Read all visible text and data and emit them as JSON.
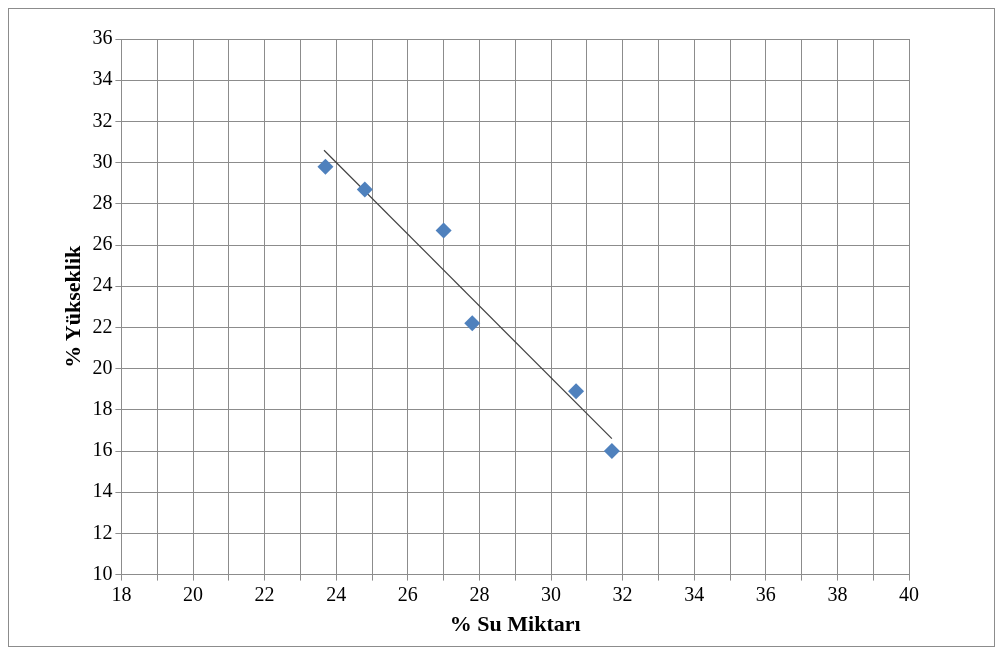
{
  "chart_data": {
    "type": "scatter",
    "xlabel": "% Su Miktarı",
    "ylabel": "% Yükseklik",
    "xlim": [
      18,
      40
    ],
    "ylim": [
      10,
      36
    ],
    "xticks": [
      18,
      {
        "value": 19,
        "label": null
      },
      20,
      {
        "value": 21,
        "label": null
      },
      22,
      {
        "value": 23,
        "label": null
      },
      24,
      {
        "value": 25,
        "label": null
      },
      26,
      {
        "value": 27,
        "label": null
      },
      28,
      {
        "value": 29,
        "label": null
      },
      30,
      {
        "value": 31,
        "label": null
      },
      32,
      {
        "value": 33,
        "label": null
      },
      34,
      {
        "value": 35,
        "label": null
      },
      36,
      {
        "value": 37,
        "label": null
      },
      38,
      {
        "value": 39,
        "label": null
      },
      40
    ],
    "yticks": [
      10,
      12,
      14,
      16,
      18,
      20,
      22,
      24,
      26,
      28,
      30,
      32,
      34,
      36
    ],
    "grid": true,
    "legend": false,
    "series": [
      {
        "type": "scatter",
        "color": "#4f81bd",
        "marker": "diamond",
        "x": [
          23.7,
          24.8,
          27.0,
          27.8,
          30.7,
          31.7
        ],
        "values": [
          29.8,
          28.7,
          26.7,
          22.2,
          18.9,
          16.0
        ]
      },
      {
        "type": "line",
        "color": "#404040",
        "marker": "none",
        "line_style": "solid",
        "x": [
          23.66,
          31.7
        ],
        "values": [
          30.6,
          16.6
        ]
      }
    ]
  }
}
